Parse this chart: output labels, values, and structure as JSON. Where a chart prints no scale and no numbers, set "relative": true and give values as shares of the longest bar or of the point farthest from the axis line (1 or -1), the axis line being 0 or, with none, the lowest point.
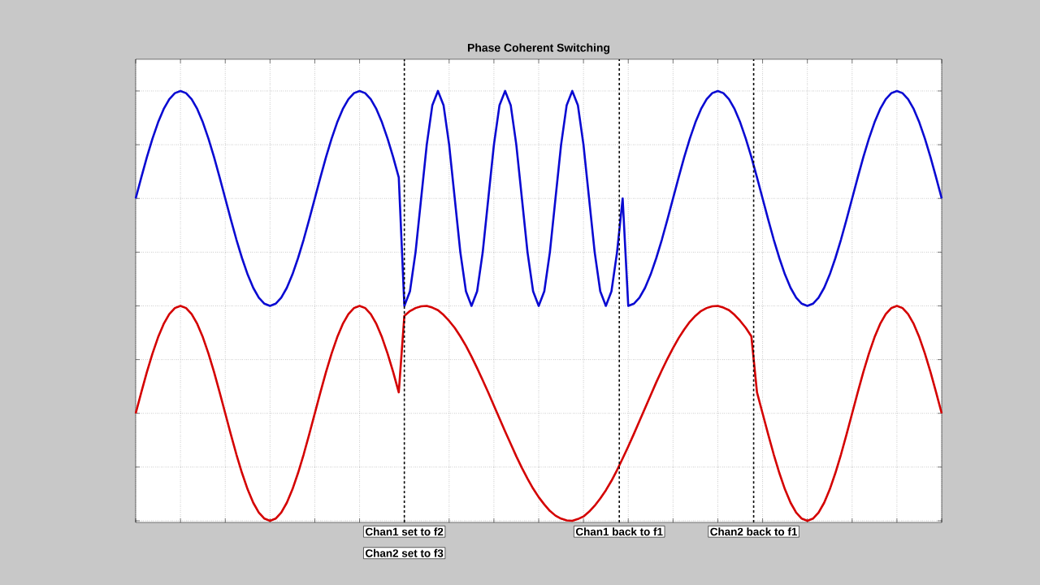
{
  "chart_data": {
    "type": "line",
    "title": "Phase Coherent Switching",
    "relative": true,
    "grid": true,
    "tick_labels": false,
    "marker": "none",
    "line_style": "solid",
    "categories": [
      null,
      null,
      null,
      null,
      null,
      null,
      null,
      null,
      null,
      null,
      null,
      null,
      null,
      null,
      null,
      null,
      null,
      null,
      null,
      null,
      null,
      null,
      null,
      null,
      null,
      null,
      null,
      null,
      null,
      null,
      null,
      null,
      null,
      null,
      null,
      null,
      null,
      null,
      null,
      null,
      null,
      null,
      null,
      null,
      null,
      null,
      null,
      null,
      null,
      null,
      null,
      null,
      null,
      null,
      null,
      null,
      null,
      null,
      null,
      null,
      null,
      null,
      null,
      null,
      null,
      null,
      null,
      null,
      null,
      null,
      null,
      null,
      null,
      null,
      null,
      null,
      null,
      null,
      null,
      null,
      null,
      null,
      null,
      null,
      null,
      null,
      null,
      null,
      null,
      null,
      null,
      null,
      null,
      null,
      null,
      null,
      null,
      null,
      null,
      null,
      null,
      null,
      null,
      null,
      null,
      null,
      null,
      null,
      null,
      null,
      null,
      null,
      null,
      null,
      null,
      null,
      null,
      null,
      null,
      null,
      null,
      null,
      null,
      null,
      null,
      null,
      null,
      null,
      null,
      null,
      null,
      null,
      null,
      null,
      null,
      null,
      null,
      null,
      null,
      null,
      null,
      null,
      null,
      null,
      null
    ],
    "series": [
      {
        "color": "#0a0ad2",
        "values": [
          0.75,
          0.799,
          0.846,
          0.889,
          0.927,
          0.958,
          0.981,
          0.995,
          1,
          0.995,
          0.981,
          0.958,
          0.927,
          0.889,
          0.846,
          0.799,
          0.75,
          0.701,
          0.654,
          0.611,
          0.573,
          0.542,
          0.519,
          0.505,
          0.5,
          0.505,
          0.519,
          0.542,
          0.573,
          0.611,
          0.654,
          0.701,
          0.75,
          0.799,
          0.846,
          0.889,
          0.927,
          0.958,
          0.981,
          0.995,
          1,
          0.995,
          0.981,
          0.958,
          0.927,
          0.889,
          0.846,
          0.799,
          0.5,
          0.534,
          0.625,
          0.75,
          0.875,
          0.967,
          1,
          0.967,
          0.875,
          0.75,
          0.625,
          0.534,
          0.5,
          0.534,
          0.625,
          0.75,
          0.875,
          0.967,
          1,
          0.967,
          0.875,
          0.75,
          0.625,
          0.534,
          0.5,
          0.534,
          0.625,
          0.75,
          0.875,
          0.967,
          1,
          0.967,
          0.875,
          0.75,
          0.625,
          0.534,
          0.5,
          0.534,
          0.625,
          0.75,
          0.5,
          0.505,
          0.519,
          0.542,
          0.573,
          0.611,
          0.654,
          0.701,
          0.75,
          0.799,
          0.846,
          0.889,
          0.927,
          0.958,
          0.981,
          0.995,
          1,
          0.995,
          0.981,
          0.958,
          0.927,
          0.889,
          0.846,
          0.799,
          0.75,
          0.701,
          0.654,
          0.611,
          0.573,
          0.542,
          0.519,
          0.505,
          0.5,
          0.505,
          0.519,
          0.542,
          0.573,
          0.611,
          0.654,
          0.701,
          0.75,
          0.799,
          0.846,
          0.889,
          0.927,
          0.958,
          0.981,
          0.995,
          1,
          0.995,
          0.981,
          0.958,
          0.927,
          0.889,
          0.846,
          0.799,
          0.75
        ]
      },
      {
        "color": "#d40000",
        "values": [
          0.25,
          0.299,
          0.346,
          0.389,
          0.427,
          0.458,
          0.481,
          0.495,
          0.5,
          0.495,
          0.481,
          0.458,
          0.427,
          0.389,
          0.346,
          0.299,
          0.25,
          0.201,
          0.154,
          0.111,
          0.073,
          0.042,
          0.019,
          0.005,
          0,
          0.005,
          0.019,
          0.042,
          0.073,
          0.111,
          0.154,
          0.201,
          0.25,
          0.299,
          0.346,
          0.389,
          0.427,
          0.458,
          0.481,
          0.495,
          0.5,
          0.495,
          0.481,
          0.458,
          0.427,
          0.389,
          0.346,
          0.299,
          0.477,
          0.488,
          0.495,
          0.499,
          0.5,
          0.496,
          0.49,
          0.479,
          0.465,
          0.449,
          0.429,
          0.407,
          0.382,
          0.355,
          0.327,
          0.298,
          0.268,
          0.238,
          0.208,
          0.179,
          0.15,
          0.123,
          0.098,
          0.075,
          0.055,
          0.038,
          0.023,
          0.012,
          0.005,
          0.001,
          0,
          0.004,
          0.01,
          0.021,
          0.035,
          0.052,
          0.071,
          0.093,
          0.118,
          0.145,
          0.173,
          0.202,
          0.232,
          0.262,
          0.292,
          0.322,
          0.35,
          0.377,
          0.402,
          0.425,
          0.445,
          0.463,
          0.477,
          0.488,
          0.495,
          0.499,
          0.5,
          0.496,
          0.49,
          0.479,
          0.465,
          0.449,
          0.429,
          0.299,
          0.25,
          0.201,
          0.154,
          0.111,
          0.073,
          0.042,
          0.019,
          0.005,
          0,
          0.005,
          0.019,
          0.042,
          0.073,
          0.111,
          0.154,
          0.201,
          0.25,
          0.299,
          0.346,
          0.389,
          0.427,
          0.458,
          0.481,
          0.495,
          0.5,
          0.495,
          0.481,
          0.458,
          0.427,
          0.389,
          0.346,
          0.299,
          0.25
        ]
      }
    ],
    "annotations": [
      "Chan1 set to f2",
      "Chan2 set to f3",
      "Chan1 back to f1",
      "Chan2 back to f1"
    ]
  }
}
